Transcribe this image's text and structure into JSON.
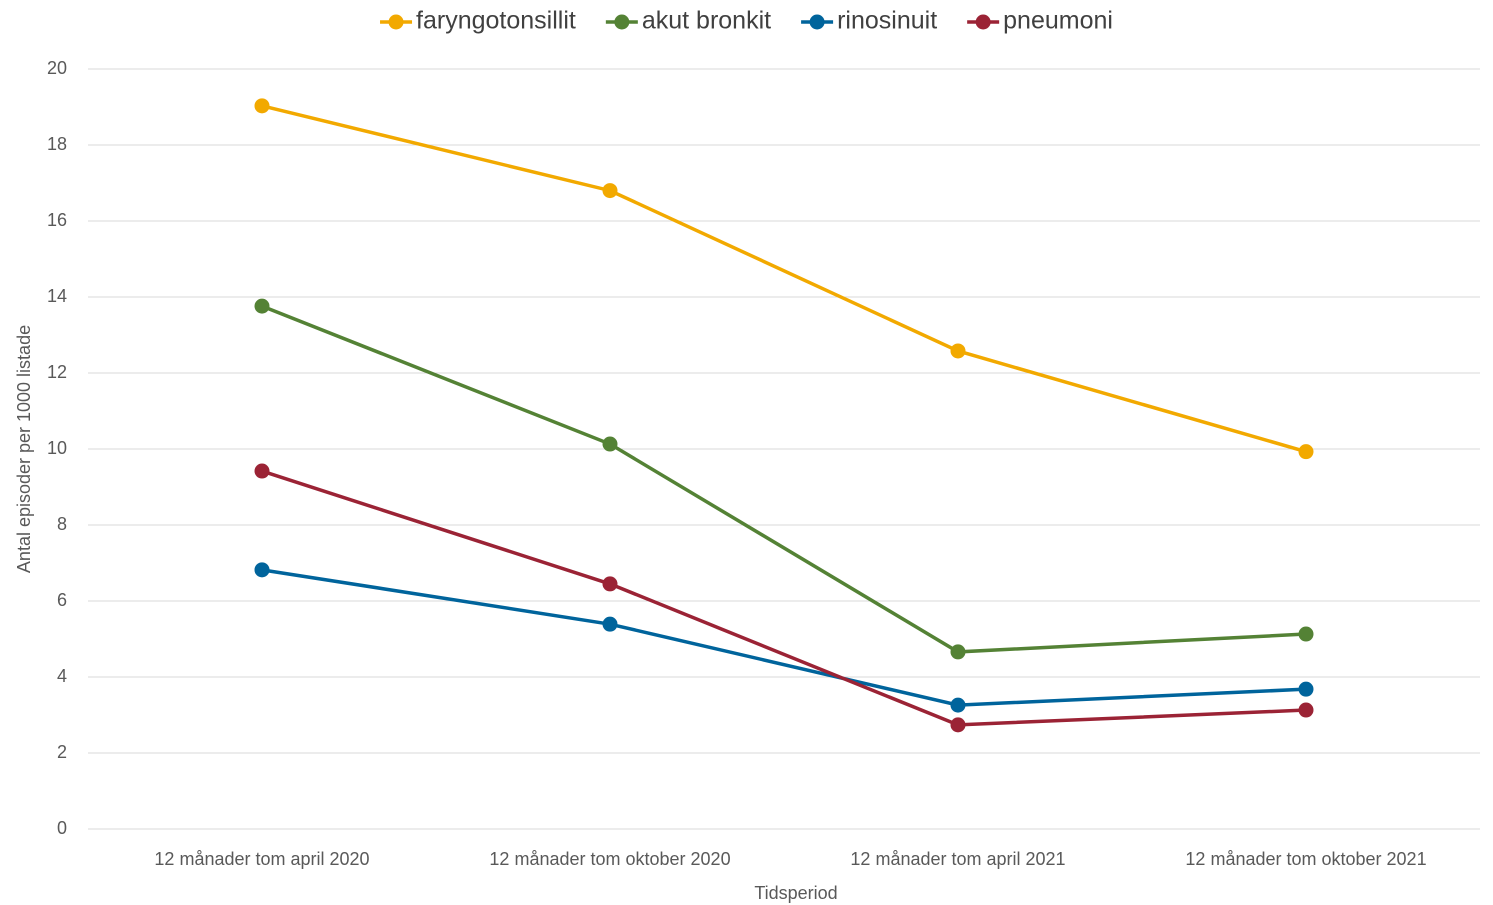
{
  "chart_data": {
    "type": "line",
    "y_label": "Antal episoder per 1000 listade",
    "x_label": "Tidsperiod",
    "categories": [
      "12 månader tom april 2020",
      "12 månader tom oktober 2020",
      "12 månader tom april 2021",
      "12 månader tom oktober 2021"
    ],
    "series": [
      {
        "name": "faryngotonsillit",
        "color": "#f2a900",
        "values": [
          19.03,
          16.8,
          12.58,
          9.93
        ]
      },
      {
        "name": "akut bronkit",
        "color": "#548235",
        "values": [
          13.76,
          10.13,
          4.66,
          5.13
        ]
      },
      {
        "name": "rinosinuit",
        "color": "#00649c",
        "values": [
          6.82,
          5.39,
          3.26,
          3.68
        ]
      },
      {
        "name": "pneumoni",
        "color": "#9b2335",
        "values": [
          9.42,
          6.45,
          2.74,
          3.13
        ]
      }
    ],
    "ylim": [
      0,
      20
    ],
    "yticks": [
      0,
      2,
      4,
      6,
      8,
      10,
      12,
      14,
      16,
      18,
      20
    ],
    "grid": true,
    "legend": "top"
  }
}
